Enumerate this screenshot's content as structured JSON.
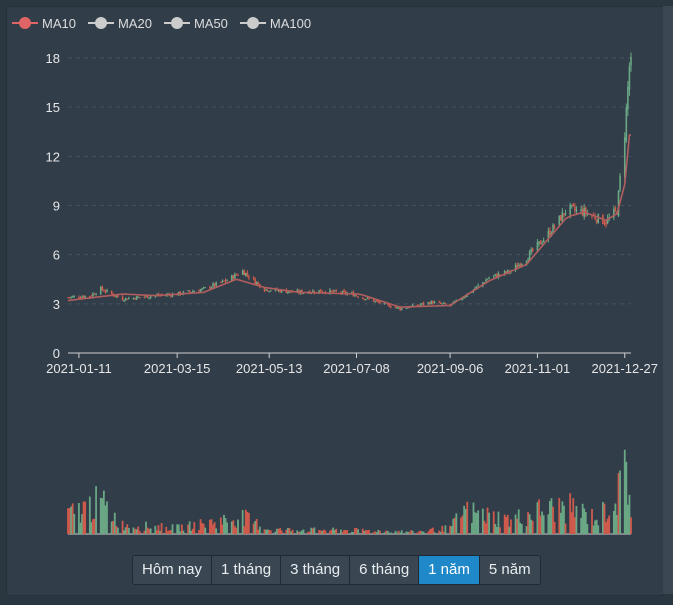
{
  "legend": [
    {
      "label": "MA10",
      "color": "#e06666"
    },
    {
      "label": "MA20",
      "color": "#cccccc"
    },
    {
      "label": "MA50",
      "color": "#cccccc"
    },
    {
      "label": "MA100",
      "color": "#cccccc"
    }
  ],
  "range_buttons": [
    {
      "label": "Hôm nay",
      "active": false
    },
    {
      "label": "1 tháng",
      "active": false
    },
    {
      "label": "3 tháng",
      "active": false
    },
    {
      "label": "6 tháng",
      "active": false
    },
    {
      "label": "1 năm",
      "active": true
    },
    {
      "label": "5 năm",
      "active": false
    }
  ],
  "colors": {
    "up": "#6aa784",
    "down": "#cf5a4c",
    "ma10": "#b35e5e",
    "axis": "#e6e6e6",
    "grid": "#46525d"
  },
  "chart_data": {
    "type": "candlestick",
    "title": "",
    "xlabel": "",
    "ylabel": "",
    "x_tick_labels": [
      "2021-01-11",
      "2021-03-15",
      "2021-05-13",
      "2021-07-08",
      "2021-09-06",
      "2021-11-01",
      "2021-12-27"
    ],
    "y_ticks": [
      0,
      3,
      6,
      9,
      12,
      15,
      18
    ],
    "ylim": [
      0,
      18
    ],
    "grid": "horizontal dashed",
    "price_keypoints": [
      {
        "date": "2021-01-04",
        "close": 3.4
      },
      {
        "date": "2021-01-18",
        "close": 3.5
      },
      {
        "date": "2021-01-25",
        "close": 3.9
      },
      {
        "date": "2021-02-08",
        "close": 3.3
      },
      {
        "date": "2021-03-01",
        "close": 3.5
      },
      {
        "date": "2021-03-15",
        "close": 3.6
      },
      {
        "date": "2021-04-01",
        "close": 3.9
      },
      {
        "date": "2021-04-15",
        "close": 4.4
      },
      {
        "date": "2021-04-26",
        "close": 5.0
      },
      {
        "date": "2021-05-10",
        "close": 3.9
      },
      {
        "date": "2021-06-01",
        "close": 3.7
      },
      {
        "date": "2021-06-15",
        "close": 3.8
      },
      {
        "date": "2021-07-05",
        "close": 3.6
      },
      {
        "date": "2021-07-25",
        "close": 3.0
      },
      {
        "date": "2021-08-05",
        "close": 2.7
      },
      {
        "date": "2021-08-25",
        "close": 3.1
      },
      {
        "date": "2021-09-06",
        "close": 2.9
      },
      {
        "date": "2021-09-20",
        "close": 3.8
      },
      {
        "date": "2021-10-01",
        "close": 4.6
      },
      {
        "date": "2021-10-15",
        "close": 5.0
      },
      {
        "date": "2021-10-25",
        "close": 5.8
      },
      {
        "date": "2021-11-10",
        "close": 7.5
      },
      {
        "date": "2021-11-20",
        "close": 8.8
      },
      {
        "date": "2021-12-01",
        "close": 8.6
      },
      {
        "date": "2021-12-15",
        "close": 8.0
      },
      {
        "date": "2021-12-22",
        "close": 8.7
      },
      {
        "date": "2021-12-27",
        "close": 13.5
      },
      {
        "date": "2021-12-30",
        "close": 17.5
      }
    ],
    "ma10_keypoints": [
      {
        "date": "2021-01-04",
        "value": 3.2
      },
      {
        "date": "2021-02-08",
        "value": 3.6
      },
      {
        "date": "2021-03-01",
        "value": 3.5
      },
      {
        "date": "2021-04-01",
        "value": 3.7
      },
      {
        "date": "2021-04-22",
        "value": 4.5
      },
      {
        "date": "2021-05-10",
        "value": 4.0
      },
      {
        "date": "2021-06-01",
        "value": 3.7
      },
      {
        "date": "2021-07-10",
        "value": 3.6
      },
      {
        "date": "2021-08-05",
        "value": 2.8
      },
      {
        "date": "2021-09-06",
        "value": 2.9
      },
      {
        "date": "2021-10-01",
        "value": 4.4
      },
      {
        "date": "2021-10-25",
        "value": 5.4
      },
      {
        "date": "2021-11-20",
        "value": 8.3
      },
      {
        "date": "2021-12-01",
        "value": 8.6
      },
      {
        "date": "2021-12-15",
        "value": 8.1
      },
      {
        "date": "2021-12-22",
        "value": 8.5
      },
      {
        "date": "2021-12-27",
        "value": 10.3
      },
      {
        "date": "2021-12-30",
        "value": 13.3
      }
    ],
    "volume_keypoints": [
      {
        "date": "2021-01-04",
        "level": 0.25
      },
      {
        "date": "2021-01-25",
        "level": 0.42
      },
      {
        "date": "2021-02-08",
        "level": 0.12
      },
      {
        "date": "2021-03-15",
        "level": 0.08
      },
      {
        "date": "2021-04-26",
        "level": 0.22
      },
      {
        "date": "2021-05-13",
        "level": 0.06
      },
      {
        "date": "2021-07-08",
        "level": 0.05
      },
      {
        "date": "2021-08-15",
        "level": 0.03
      },
      {
        "date": "2021-09-06",
        "level": 0.08
      },
      {
        "date": "2021-09-15",
        "level": 0.3
      },
      {
        "date": "2021-10-15",
        "level": 0.18
      },
      {
        "date": "2021-11-01",
        "level": 0.3
      },
      {
        "date": "2021-11-20",
        "level": 0.35
      },
      {
        "date": "2021-12-10",
        "level": 0.2
      },
      {
        "date": "2021-12-24",
        "level": 0.55
      },
      {
        "date": "2021-12-28",
        "level": 0.95
      },
      {
        "date": "2021-12-31",
        "level": 0.3
      }
    ]
  }
}
